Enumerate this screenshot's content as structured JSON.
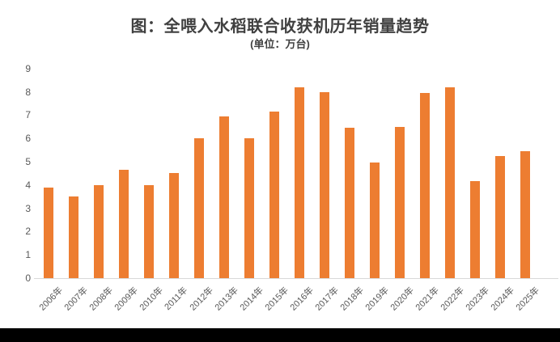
{
  "chart_data": {
    "type": "bar",
    "title": "图：全喂入水稻联合收获机历年销量趋势",
    "subtitle": "(单位：万台)",
    "categories": [
      "2006年",
      "2007年",
      "2008年",
      "2009年",
      "2010年",
      "2011年",
      "2012年",
      "2013年",
      "2014年",
      "2015年",
      "2016年",
      "2017年",
      "2018年",
      "2019年",
      "2020年",
      "2021年",
      "2022年",
      "2023年",
      "2024年",
      "2025年"
    ],
    "values": [
      3.9,
      3.5,
      4.0,
      4.65,
      4.0,
      4.5,
      6.0,
      6.95,
      6.0,
      7.15,
      8.2,
      8.0,
      6.45,
      4.95,
      6.5,
      7.95,
      8.2,
      4.15,
      5.25,
      5.45
    ],
    "xlabel": "",
    "ylabel": "",
    "ylim": [
      0,
      9
    ],
    "yticks": [
      0,
      1,
      2,
      3,
      4,
      5,
      6,
      7,
      8,
      9
    ],
    "grid": false,
    "legend": false
  },
  "colors": {
    "bar": "#ED7D31",
    "title_text": "#404040",
    "axis_text": "#595959",
    "axis_line": "#D9D9D9",
    "background": "#FFFFFF",
    "bottom_strip": "#000000"
  }
}
